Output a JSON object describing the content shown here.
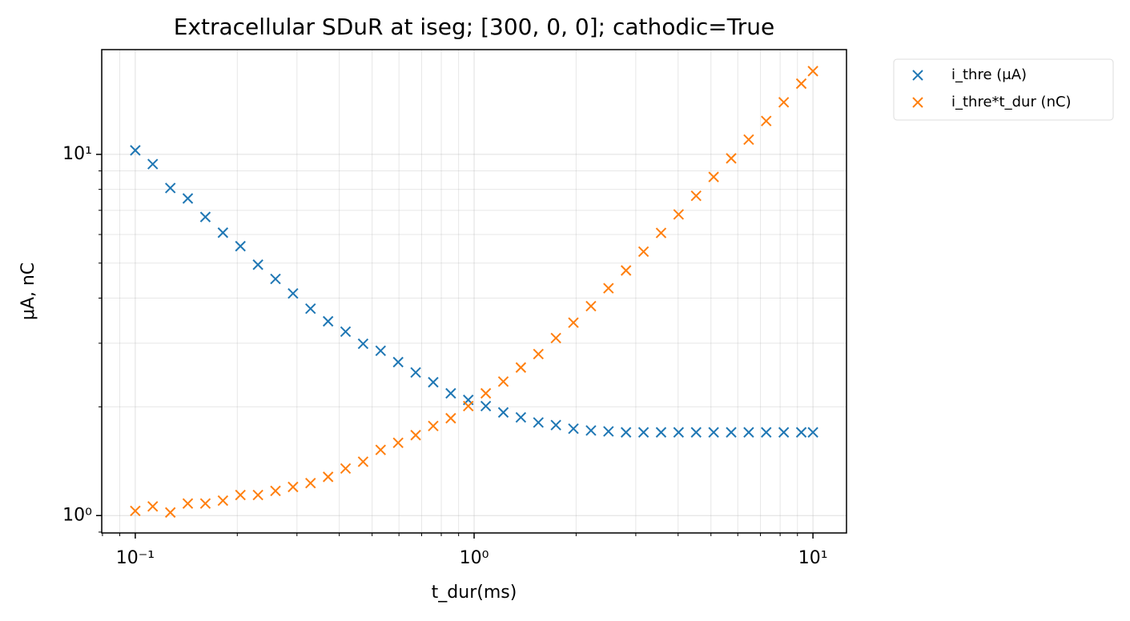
{
  "chart_data": {
    "type": "scatter",
    "title": "Extracellular SDuR at iseg; [300, 0, 0]; cathodic=True",
    "x_label": "t_dur(ms)",
    "y_label": "μA, nC",
    "x_scale": "log",
    "y_scale": "log",
    "grid": true,
    "legend": "outside-upper-right",
    "x": [
      0.1,
      0.1126,
      0.1269,
      0.1429,
      0.161,
      0.1814,
      0.2043,
      0.2302,
      0.2593,
      0.2921,
      0.329,
      0.3707,
      0.4175,
      0.4703,
      0.5298,
      0.5968,
      0.6723,
      0.7574,
      0.8532,
      0.9611,
      1.0826,
      1.2195,
      1.3738,
      1.5476,
      1.7433,
      1.9638,
      2.2122,
      2.492,
      2.8072,
      3.1623,
      3.5622,
      4.0128,
      4.5204,
      5.0922,
      5.7362,
      6.462,
      7.279,
      8.1995,
      9.2367,
      10.0
    ],
    "series": [
      {
        "name": "i_thre (μA)",
        "color": "#1f77b4",
        "values": [
          10.26,
          9.4,
          8.07,
          7.55,
          6.71,
          6.07,
          5.57,
          4.95,
          4.52,
          4.12,
          3.74,
          3.45,
          3.23,
          2.99,
          2.86,
          2.66,
          2.49,
          2.34,
          2.18,
          2.09,
          2.01,
          1.93,
          1.87,
          1.81,
          1.78,
          1.74,
          1.72,
          1.71,
          1.7,
          1.7,
          1.7,
          1.7,
          1.7,
          1.7,
          1.7,
          1.7,
          1.7,
          1.7,
          1.7,
          1.7
        ]
      },
      {
        "name": "i_thre*t_dur (nC)",
        "color": "#ff7f0e",
        "values": [
          1.03,
          1.06,
          1.02,
          1.08,
          1.08,
          1.1,
          1.14,
          1.14,
          1.17,
          1.2,
          1.23,
          1.28,
          1.35,
          1.41,
          1.52,
          1.59,
          1.67,
          1.77,
          1.86,
          2.01,
          2.18,
          2.35,
          2.57,
          2.8,
          3.1,
          3.42,
          3.8,
          4.26,
          4.77,
          5.38,
          6.06,
          6.82,
          7.68,
          8.66,
          9.75,
          10.99,
          12.37,
          13.94,
          15.7,
          17.0
        ]
      }
    ],
    "xlim": [
      0.0796,
      12.56
    ],
    "ylim": [
      0.895,
      19.5
    ],
    "xticks": [
      {
        "value": 0.1,
        "label": "10⁻¹"
      },
      {
        "value": 1,
        "label": "10⁰"
      },
      {
        "value": 10,
        "label": "10¹"
      }
    ],
    "yticks": [
      {
        "value": 1,
        "label": "10⁰"
      },
      {
        "value": 10,
        "label": "10¹"
      }
    ],
    "xminorticks": [
      0.08,
      0.09,
      0.2,
      0.3,
      0.4,
      0.5,
      0.6,
      0.7,
      0.8,
      0.9,
      2,
      3,
      4,
      5,
      6,
      7,
      8,
      9
    ],
    "yminorticks": [
      0.9,
      2,
      3,
      4,
      5,
      6,
      7,
      8,
      9
    ]
  }
}
